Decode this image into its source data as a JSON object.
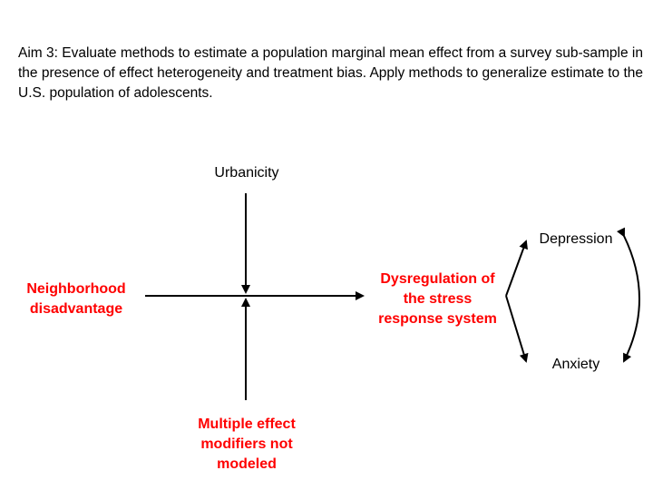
{
  "header": {
    "aim_text": "Aim 3: Evaluate methods to estimate a population marginal mean effect from a survey sub-sample in the presence of effect heterogeneity and treatment bias. Apply methods to generalize estimate to the U.S. population of adolescents."
  },
  "diagram": {
    "nodes": {
      "urbanicity": {
        "lines": [
          "Urbanicity"
        ]
      },
      "neighborhood": {
        "lines": [
          "Neighborhood",
          "disadvantage"
        ]
      },
      "dysregulation": {
        "lines": [
          "Dysregulation of",
          "the stress",
          "response system"
        ]
      },
      "modifiers": {
        "lines": [
          "Multiple effect",
          "modifiers not",
          "modeled"
        ]
      },
      "depression": {
        "lines": [
          "Depression"
        ]
      },
      "anxiety": {
        "lines": [
          "Anxiety"
        ]
      }
    },
    "colors": {
      "highlight": "#ff0000",
      "text": "#000000",
      "arrow": "#000000"
    }
  }
}
